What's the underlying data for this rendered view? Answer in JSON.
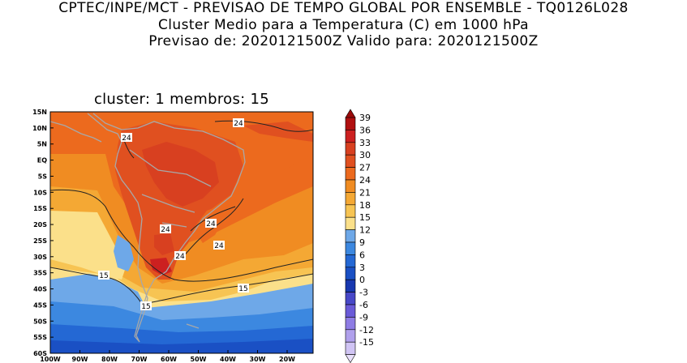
{
  "header": {
    "line1": "CPTEC/INPE/MCT - PREVISAO DE TEMPO GLOBAL POR ENSEMBLE - TQ0126L028",
    "line2": "Cluster Medio para a Temperatura (C) em 1000 hPa",
    "line3": "Previsao de: 2020121500Z   Valido para: 2020121500Z"
  },
  "map": {
    "subtitle": "cluster: 1  membros: 15",
    "lat_ticks": [
      "15N",
      "10N",
      "5N",
      "EQ",
      "5S",
      "10S",
      "15S",
      "20S",
      "25S",
      "30S",
      "35S",
      "40S",
      "45S",
      "50S",
      "55S",
      "60S"
    ],
    "lon_ticks": [
      "100W",
      "90W",
      "80W",
      "70W",
      "60W",
      "50W",
      "40W",
      "30W",
      "20W"
    ],
    "contour_labels": [
      "24",
      "24",
      "24",
      "24",
      "24",
      "24",
      "15",
      "15",
      "15"
    ]
  },
  "colorbar": {
    "levels": [
      "39",
      "36",
      "33",
      "30",
      "27",
      "24",
      "21",
      "18",
      "15",
      "12",
      "9",
      "6",
      "3",
      "0",
      "-3",
      "-6",
      "-9",
      "-12",
      "-15"
    ],
    "colors": [
      "#b01010",
      "#cc2020",
      "#d84020",
      "#e05020",
      "#ec6a1e",
      "#f08c22",
      "#f4a834",
      "#f7c453",
      "#fbe08a",
      "#6ea8e8",
      "#3c88e0",
      "#2468d4",
      "#1a50c4",
      "#1838b0",
      "#4848c8",
      "#6a5ad8",
      "#8e7ce4",
      "#b0a0ec",
      "#d0c4f4"
    ]
  }
}
